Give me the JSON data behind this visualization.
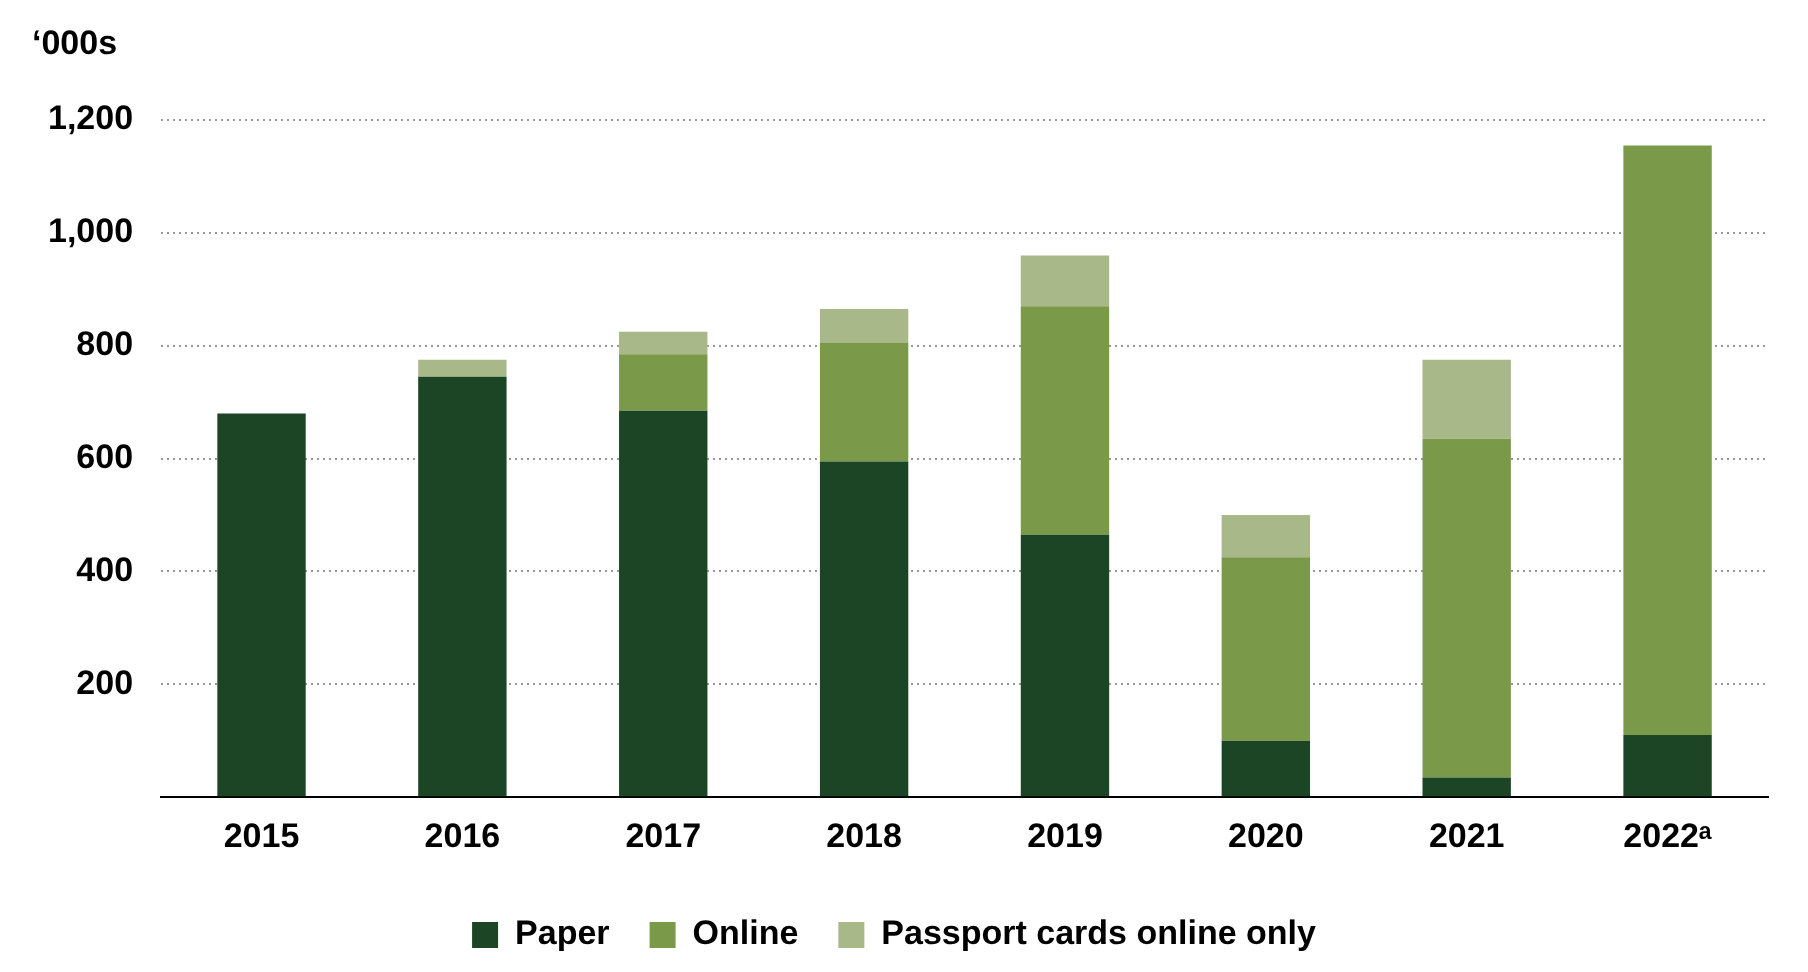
{
  "chart_data": {
    "type": "bar",
    "stacked": true,
    "ylabel": "‘000s",
    "categories": [
      "2015",
      "2016",
      "2017",
      "2018",
      "2019",
      "2020",
      "2021",
      "2022ᵃ"
    ],
    "series": [
      {
        "name": "Paper",
        "color": "#1b4524",
        "values": [
          680,
          745,
          685,
          595,
          465,
          100,
          35,
          110
        ]
      },
      {
        "name": "Online",
        "color": "#7a9a4a",
        "values": [
          0,
          0,
          100,
          210,
          405,
          325,
          600,
          1045
        ]
      },
      {
        "name": "Passport cards online only",
        "color": "#a8b888",
        "values": [
          0,
          30,
          40,
          60,
          90,
          75,
          140,
          0
        ]
      }
    ],
    "ylim": [
      0,
      1200
    ],
    "yticks": [
      {
        "value": 0,
        "label": null
      },
      200,
      400,
      600,
      800,
      {
        "value": 1000,
        "label": "1,000"
      },
      {
        "value": 1200,
        "label": "1,200"
      }
    ],
    "grid": "y",
    "legend": "bottom"
  }
}
